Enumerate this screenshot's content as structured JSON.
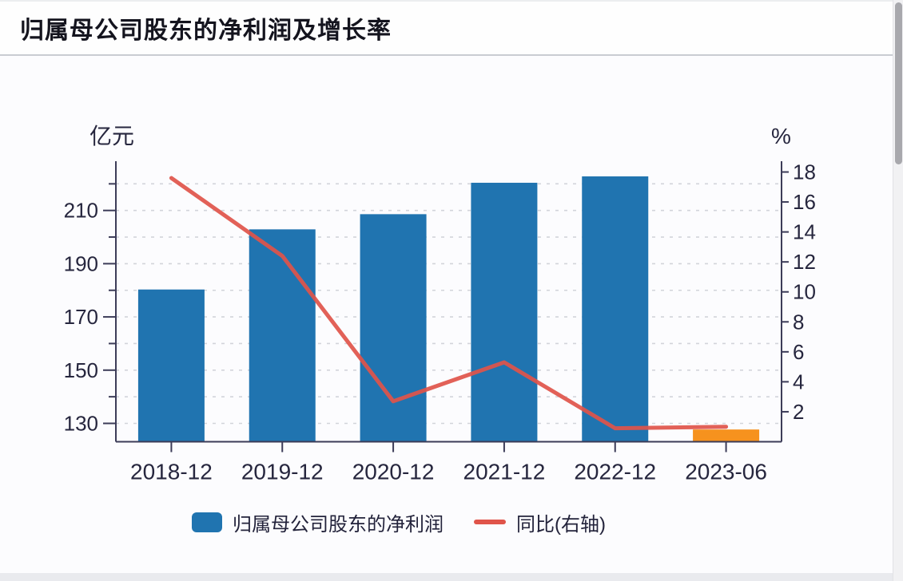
{
  "page": {
    "title": "归属母公司股东的净利润及增长率"
  },
  "colors": {
    "bar_blue": "#2074b0",
    "bar_orange": "#f6921e",
    "line_red": "#e0544a",
    "axis_line": "#3c3c58",
    "tick_text": "#26263e",
    "gridline": "#d2d4da",
    "title_text": "#14141e",
    "separator": "#c9ccd2",
    "scrollbar_thumb": "#a8a8ad",
    "scrollbar_track": "#f1f1f3"
  },
  "chart_data": {
    "type": "bar",
    "subtype": "dual-axis bar+line",
    "title": "归属母公司股东的净利润及增长率",
    "categories": [
      "2018-12",
      "2019-12",
      "2020-12",
      "2021-12",
      "2022-12",
      "2023-06"
    ],
    "series": [
      {
        "name": "归属母公司股东的净利润",
        "type": "bar",
        "axis": "left",
        "unit": "亿元",
        "values": [
          180.3,
          202.9,
          208.6,
          220.4,
          222.8,
          127.7
        ],
        "bar_colors": [
          "#2074b0",
          "#2074b0",
          "#2074b0",
          "#2074b0",
          "#2074b0",
          "#f6921e"
        ]
      },
      {
        "name": "同比(右轴)",
        "type": "line",
        "axis": "right",
        "unit": "%",
        "values": [
          17.6,
          12.4,
          2.7,
          5.3,
          0.9,
          1.0
        ],
        "color": "#e0544a"
      }
    ],
    "left_axis": {
      "label": "亿元",
      "min": 123.1,
      "max": 228.5,
      "labeled_ticks": [
        130,
        150,
        170,
        190,
        210
      ],
      "minor_ticks": [
        140,
        160,
        180,
        200,
        220
      ],
      "gridlines": [
        130,
        140,
        150,
        160,
        170,
        180,
        190,
        200,
        210,
        220
      ]
    },
    "right_axis": {
      "label": "%",
      "min": 0,
      "max": 18.72,
      "ticks": [
        2,
        4,
        6,
        8,
        10,
        12,
        14,
        16,
        18
      ]
    },
    "legend": [
      {
        "label": "归属母公司股东的净利润",
        "marker": "bar",
        "color": "#2074b0"
      },
      {
        "label": "同比(右轴)",
        "marker": "line",
        "color": "#e0544a"
      }
    ],
    "legend_position": "bottom",
    "grid": true
  }
}
